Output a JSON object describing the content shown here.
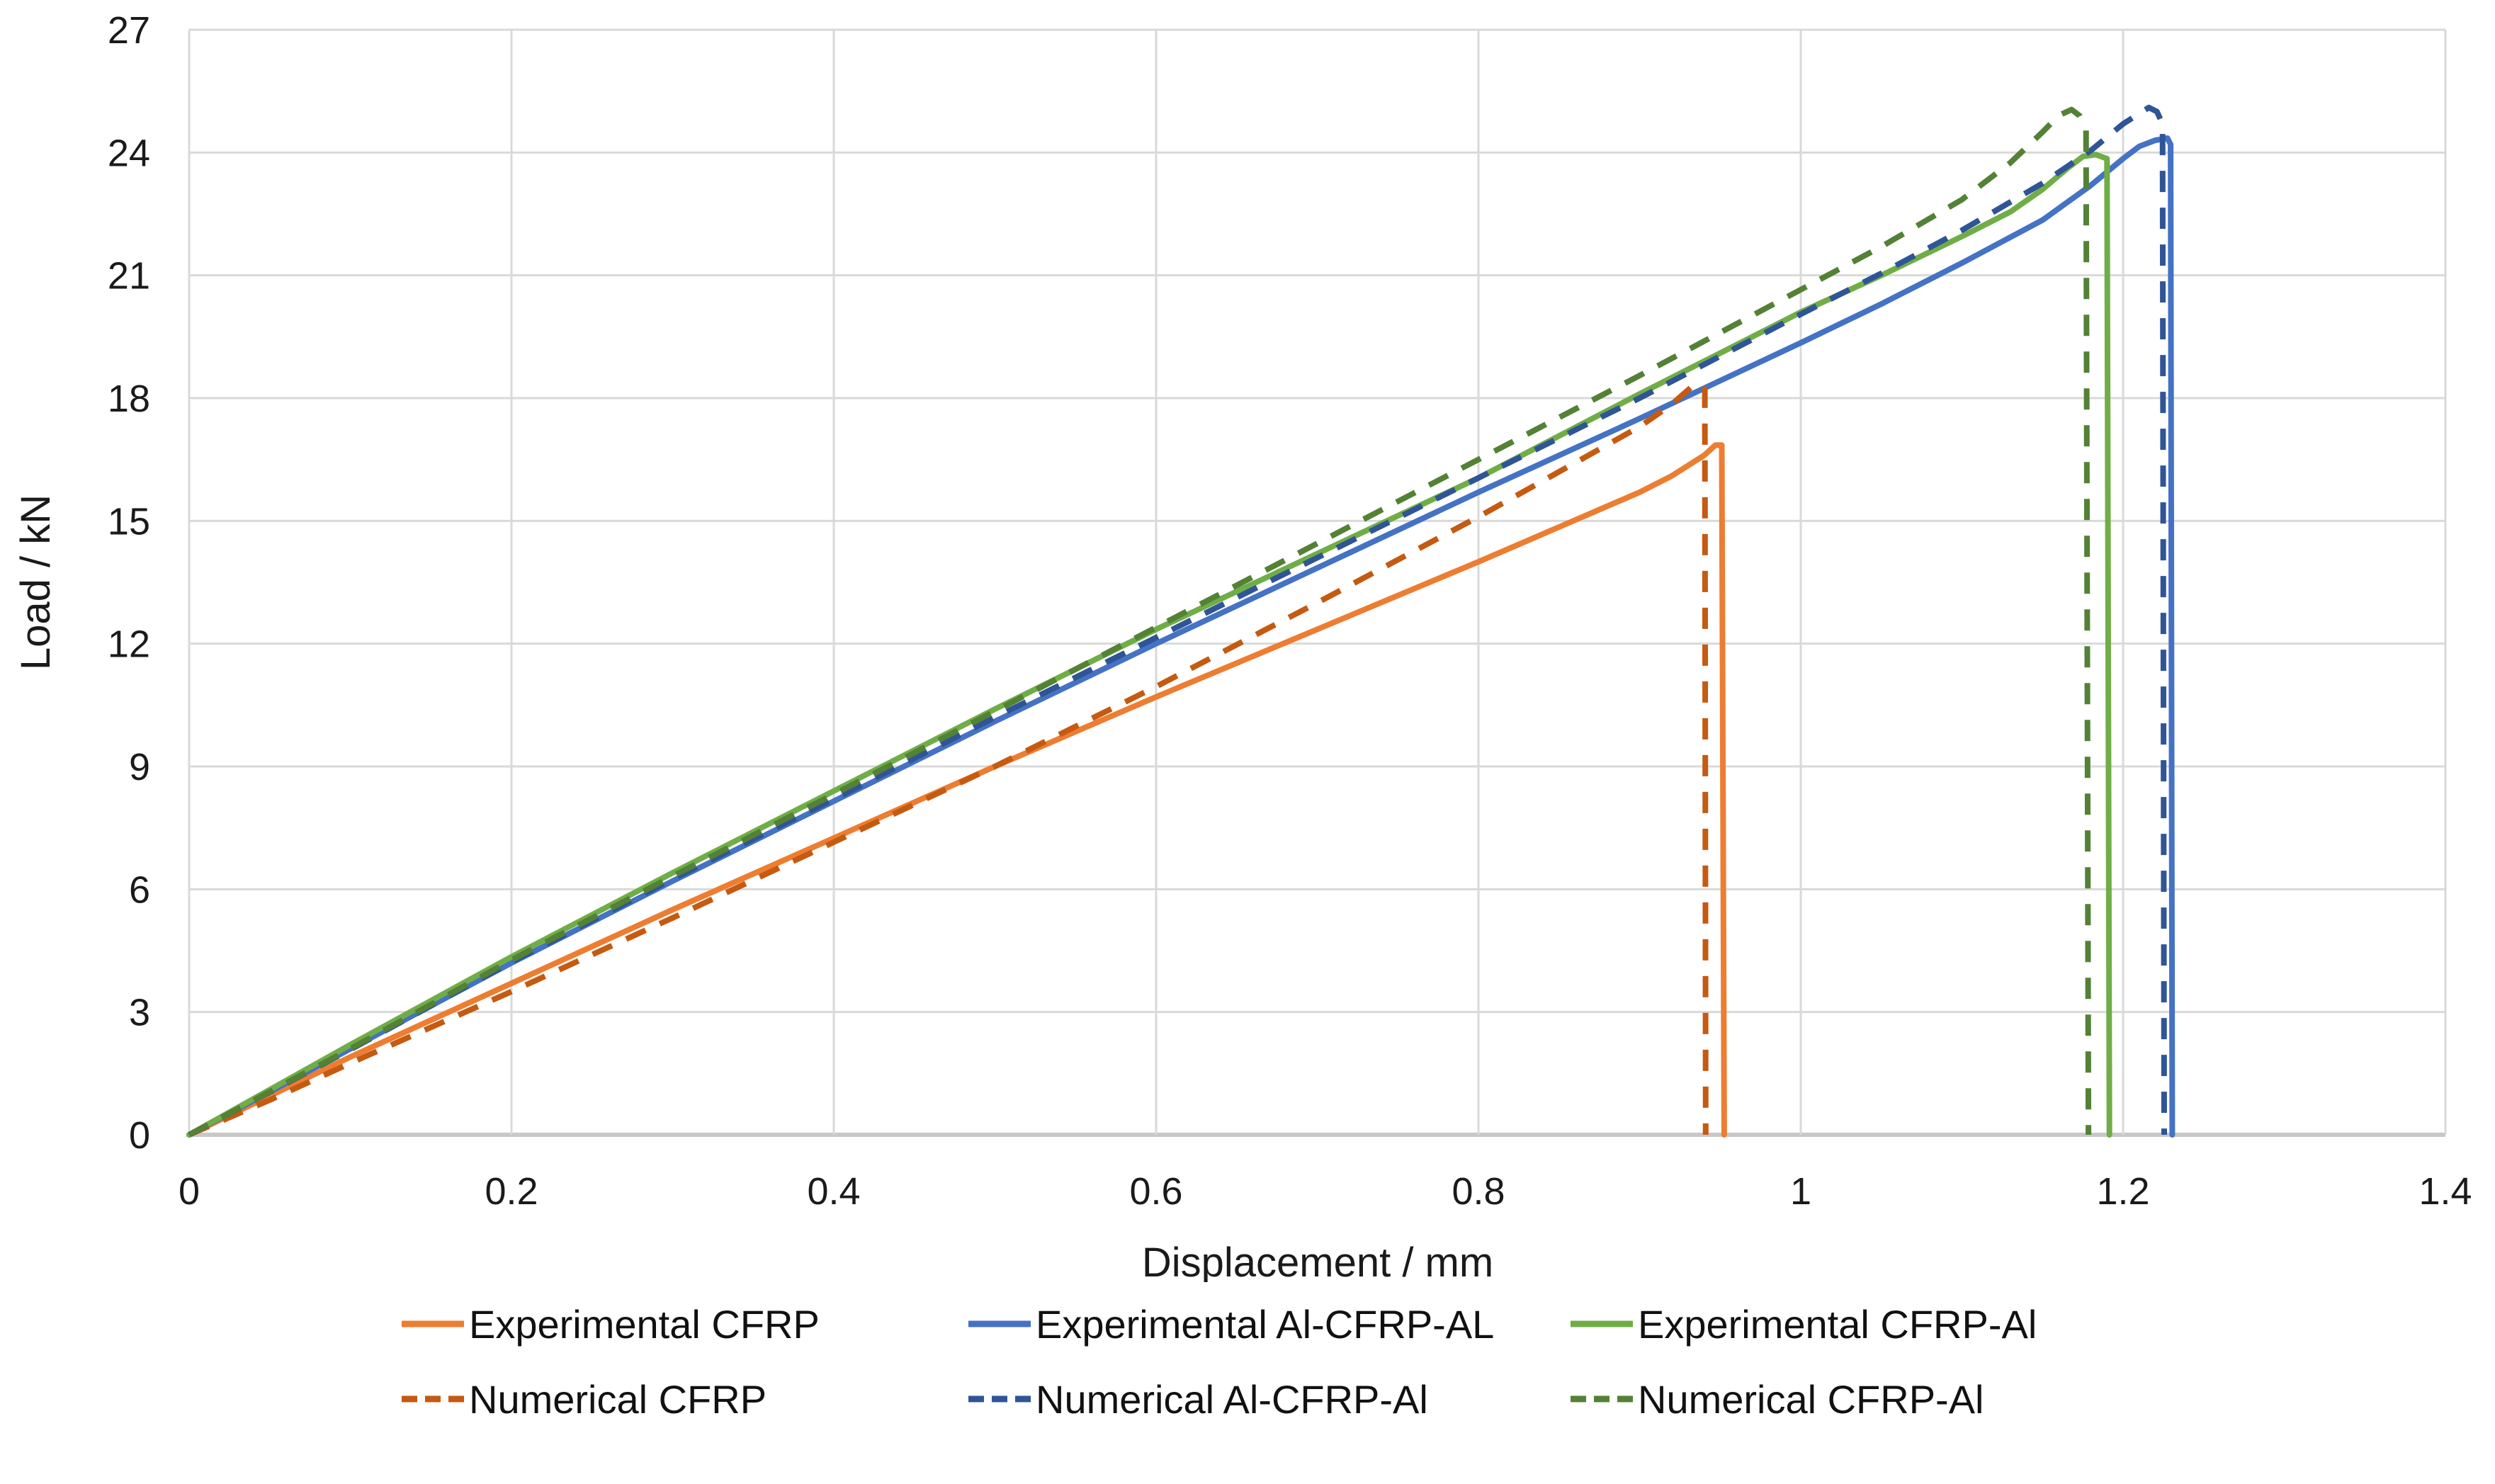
{
  "chart_data": {
    "type": "line",
    "title": "",
    "xlabel": "Displacement / mm",
    "ylabel": "Load / kN",
    "xlim": [
      0,
      1.4
    ],
    "ylim": [
      0,
      27
    ],
    "grid": true,
    "legend_position": "bottom",
    "colors": {
      "background": "#FFFFFF",
      "grid": "#D9D9D9",
      "axis": "#C8C8C8",
      "text": "#1A1A1A",
      "experimental_cfrp": "#ED7D31",
      "experimental_al_cfrp_al": "#4472C4",
      "experimental_cfrp_al": "#70AD47",
      "numerical_cfrp": "#C55A11",
      "numerical_al_cfrp_al": "#2F5597",
      "numerical_cfrp_al": "#538135"
    },
    "xticks": {
      "values": [
        0,
        0.2,
        0.4,
        0.6,
        0.8,
        1,
        1.2,
        1.4
      ],
      "labels": [
        "0",
        "0.2",
        "0.4",
        "0.6",
        "0.8",
        "1",
        "1.2",
        "1.4"
      ]
    },
    "yticks": {
      "values": [
        0,
        3,
        6,
        9,
        12,
        15,
        18,
        21,
        24,
        27
      ],
      "labels": [
        "0",
        "3",
        "6",
        "9",
        "12",
        "15",
        "18",
        "21",
        "24",
        "27"
      ]
    },
    "legend_rows": [
      [
        0,
        1,
        2
      ],
      [
        3,
        4,
        5
      ]
    ],
    "series": [
      {
        "id": "experimental-cfrp",
        "name": "Experimental CFRP",
        "color": "#ED7D31",
        "style": "solid",
        "points": [
          [
            0,
            0
          ],
          [
            0.05,
            0.95
          ],
          [
            0.1,
            1.9
          ],
          [
            0.15,
            2.8
          ],
          [
            0.2,
            3.7
          ],
          [
            0.3,
            5.5
          ],
          [
            0.4,
            7.25
          ],
          [
            0.5,
            9.0
          ],
          [
            0.6,
            10.7
          ],
          [
            0.7,
            12.35
          ],
          [
            0.8,
            14.0
          ],
          [
            0.85,
            14.85
          ],
          [
            0.9,
            15.7
          ],
          [
            0.92,
            16.1
          ],
          [
            0.94,
            16.6
          ],
          [
            0.947,
            16.85
          ],
          [
            0.951,
            16.85
          ],
          [
            0.9525,
            0
          ]
        ]
      },
      {
        "id": "experimental-al-cfrp-al",
        "name": "Experimental Al-CFRP-AL",
        "color": "#4472C4",
        "style": "solid",
        "points": [
          [
            0,
            0
          ],
          [
            0.1,
            2.1
          ],
          [
            0.2,
            4.2
          ],
          [
            0.3,
            6.2
          ],
          [
            0.4,
            8.15
          ],
          [
            0.5,
            10.1
          ],
          [
            0.6,
            12.0
          ],
          [
            0.7,
            13.85
          ],
          [
            0.8,
            15.7
          ],
          [
            0.9,
            17.5
          ],
          [
            1.0,
            19.35
          ],
          [
            1.05,
            20.3
          ],
          [
            1.1,
            21.3
          ],
          [
            1.15,
            22.35
          ],
          [
            1.18,
            23.2
          ],
          [
            1.2,
            23.85
          ],
          [
            1.21,
            24.15
          ],
          [
            1.22,
            24.3
          ],
          [
            1.2275,
            24.35
          ],
          [
            1.2295,
            24.2
          ],
          [
            1.2305,
            0
          ]
        ]
      },
      {
        "id": "experimental-cfrp-al",
        "name": "Experimental CFRP-Al",
        "color": "#70AD47",
        "style": "solid",
        "points": [
          [
            0,
            0
          ],
          [
            0.1,
            2.2
          ],
          [
            0.2,
            4.35
          ],
          [
            0.3,
            6.4
          ],
          [
            0.4,
            8.4
          ],
          [
            0.5,
            10.4
          ],
          [
            0.6,
            12.35
          ],
          [
            0.7,
            14.2
          ],
          [
            0.8,
            16.05
          ],
          [
            0.9,
            18.1
          ],
          [
            1.0,
            20.1
          ],
          [
            1.05,
            21.0
          ],
          [
            1.1,
            21.95
          ],
          [
            1.13,
            22.55
          ],
          [
            1.15,
            23.1
          ],
          [
            1.165,
            23.6
          ],
          [
            1.175,
            23.9
          ],
          [
            1.183,
            23.95
          ],
          [
            1.19,
            23.85
          ],
          [
            1.1915,
            0
          ]
        ]
      },
      {
        "id": "numerical-cfrp",
        "name": "Numerical CFRP",
        "color": "#C55A11",
        "style": "dashed",
        "points": [
          [
            0,
            0
          ],
          [
            0.05,
            0.85
          ],
          [
            0.1,
            1.75
          ],
          [
            0.2,
            3.5
          ],
          [
            0.3,
            5.3
          ],
          [
            0.4,
            7.15
          ],
          [
            0.5,
            9.0
          ],
          [
            0.6,
            10.95
          ],
          [
            0.7,
            13.0
          ],
          [
            0.8,
            15.1
          ],
          [
            0.85,
            16.2
          ],
          [
            0.9,
            17.3
          ],
          [
            0.92,
            17.85
          ],
          [
            0.933,
            18.3
          ],
          [
            0.938,
            18.35
          ],
          [
            0.9405,
            18.2
          ],
          [
            0.941,
            0
          ]
        ]
      },
      {
        "id": "numerical-al-cfrp-al",
        "name": "Numerical Al-CFRP-Al",
        "color": "#2F5597",
        "style": "dashed",
        "points": [
          [
            0,
            0
          ],
          [
            0.1,
            2.08
          ],
          [
            0.2,
            4.22
          ],
          [
            0.3,
            6.25
          ],
          [
            0.4,
            8.2
          ],
          [
            0.5,
            10.2
          ],
          [
            0.6,
            12.15
          ],
          [
            0.7,
            14.1
          ],
          [
            0.8,
            16.05
          ],
          [
            0.9,
            18.0
          ],
          [
            1.0,
            20.05
          ],
          [
            1.05,
            21.05
          ],
          [
            1.1,
            22.1
          ],
          [
            1.15,
            23.25
          ],
          [
            1.18,
            24.05
          ],
          [
            1.2,
            24.7
          ],
          [
            1.21,
            24.95
          ],
          [
            1.216,
            25.1
          ],
          [
            1.221,
            25.0
          ],
          [
            1.2245,
            24.7
          ],
          [
            1.2255,
            0
          ]
        ]
      },
      {
        "id": "numerical-cfrp-al",
        "name": "Numerical CFRP-Al",
        "color": "#538135",
        "style": "dashed",
        "points": [
          [
            0,
            0
          ],
          [
            0.1,
            2.1
          ],
          [
            0.2,
            4.27
          ],
          [
            0.3,
            6.32
          ],
          [
            0.4,
            8.32
          ],
          [
            0.5,
            10.35
          ],
          [
            0.6,
            12.4
          ],
          [
            0.7,
            14.45
          ],
          [
            0.8,
            16.5
          ],
          [
            0.9,
            18.55
          ],
          [
            1.0,
            20.65
          ],
          [
            1.05,
            21.7
          ],
          [
            1.1,
            22.85
          ],
          [
            1.13,
            23.75
          ],
          [
            1.15,
            24.5
          ],
          [
            1.16,
            24.9
          ],
          [
            1.168,
            25.05
          ],
          [
            1.173,
            24.9
          ],
          [
            1.177,
            24.55
          ],
          [
            1.1785,
            0
          ]
        ]
      }
    ]
  }
}
